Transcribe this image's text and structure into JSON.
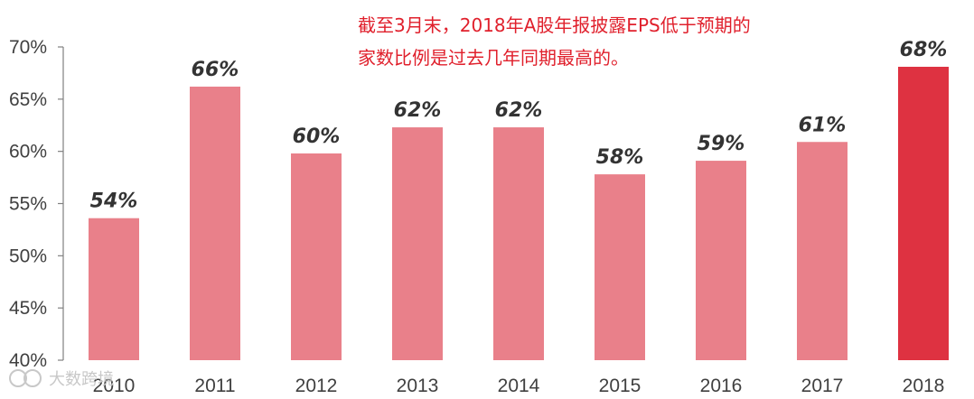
{
  "chart_data": {
    "type": "bar",
    "title": "",
    "xlabel": "",
    "ylabel": "",
    "categories": [
      "2010",
      "2011",
      "2012",
      "2013",
      "2014",
      "2015",
      "2016",
      "2017",
      "2018"
    ],
    "values": [
      53.6,
      66.2,
      59.8,
      62.3,
      62.3,
      57.8,
      59.1,
      60.9,
      68.1
    ],
    "data_labels": [
      "54%",
      "66%",
      "60%",
      "62%",
      "62%",
      "58%",
      "59%",
      "61%",
      "68%"
    ],
    "ylim": [
      40,
      70
    ],
    "yticks": [
      40,
      45,
      50,
      55,
      60,
      65,
      70
    ],
    "ytick_labels": [
      "40%",
      "45%",
      "50%",
      "55%",
      "60%",
      "65%",
      "70%"
    ],
    "grid": false,
    "colors": {
      "bar": "#e9808a",
      "highlight": "#de3241",
      "highlight_category": "2018"
    },
    "annotation": [
      "截至3月末，2018年A股年报披露EPS低于预期的",
      "家数比例是过去几年同期最高的。"
    ]
  },
  "watermark": "大数跨境"
}
